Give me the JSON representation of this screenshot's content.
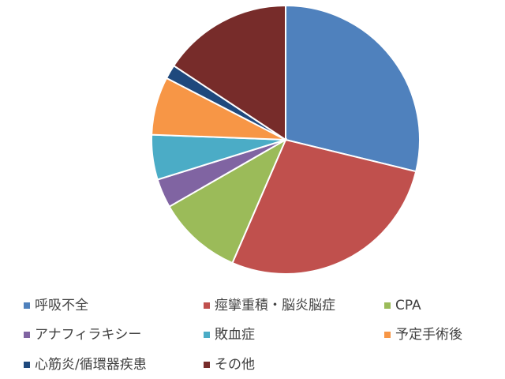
{
  "chart_data": {
    "type": "pie",
    "categories": [
      "呼吸不全",
      "痙攣重積・脳炎脳症",
      "CPA",
      "アナフィラキシー",
      "敗血症",
      "予定手術後",
      "心筋炎/循環器疾患",
      "その他"
    ],
    "values": [
      28.8,
      27.7,
      10.2,
      3.5,
      5.4,
      7.0,
      1.7,
      15.7
    ],
    "colors": [
      "#4f81bd",
      "#c0504d",
      "#9bbb59",
      "#8064a2",
      "#4bacc6",
      "#f79646",
      "#1f497d",
      "#772c2a"
    ],
    "legend": "bottom"
  }
}
